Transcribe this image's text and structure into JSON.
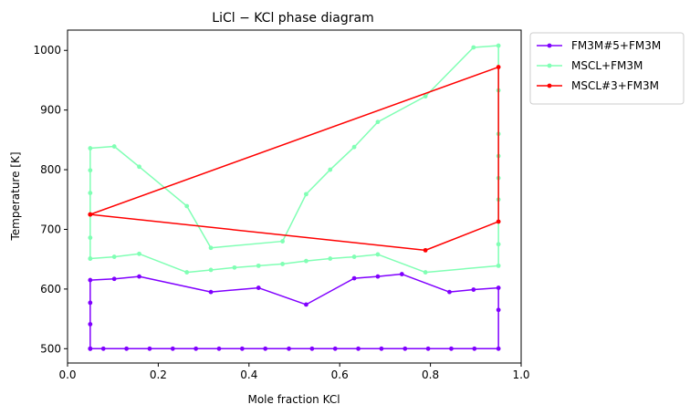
{
  "chart_data": {
    "type": "line",
    "title": "LiCl − KCl phase diagram",
    "xlabel": "Mole fraction KCl",
    "ylabel": "Temperature [K]",
    "xlim": [
      0.0,
      1.0
    ],
    "ylim": [
      476,
      1034
    ],
    "xticks": [
      0.0,
      0.2,
      0.4,
      0.6,
      0.8,
      1.0
    ],
    "xtick_labels": [
      "0.0",
      "0.2",
      "0.4",
      "0.6",
      "0.8",
      "1.0"
    ],
    "yticks": [
      500,
      600,
      700,
      800,
      900,
      1000
    ],
    "ytick_labels": [
      "500",
      "600",
      "700",
      "800",
      "900",
      "1000"
    ],
    "grid": false,
    "legend_position": "outside-top-right",
    "series": [
      {
        "name": "FM3M#5+FM3M",
        "color": "#8000ff",
        "x": [
          0.05,
          0.05,
          0.05,
          0.05,
          0.103,
          0.158,
          0.316,
          0.421,
          0.526,
          0.632,
          0.684,
          0.737,
          0.842,
          0.895,
          0.95,
          0.95,
          0.95,
          0.897,
          0.846,
          0.795,
          0.744,
          0.692,
          0.641,
          0.59,
          0.539,
          0.488,
          0.436,
          0.385,
          0.334,
          0.283,
          0.232,
          0.181,
          0.13,
          0.079,
          0.05,
          0.05
        ],
        "y": [
          500,
          541,
          577,
          615,
          617,
          621,
          595,
          602,
          574,
          618,
          621,
          625,
          595,
          599,
          602,
          565,
          500,
          500,
          500,
          500,
          500,
          500,
          500,
          500,
          500,
          500,
          500,
          500,
          500,
          500,
          500,
          500,
          500,
          500,
          500,
          500
        ]
      },
      {
        "name": "MSCL+FM3M",
        "color": "#80ffb4",
        "x": [
          0.05,
          0.05,
          0.05,
          0.05,
          0.05,
          0.103,
          0.158,
          0.263,
          0.316,
          0.474,
          0.526,
          0.579,
          0.632,
          0.684,
          0.789,
          0.895,
          0.95,
          0.95,
          0.95,
          0.95,
          0.95,
          0.95,
          0.95,
          0.95,
          0.789,
          0.684,
          0.632,
          0.579,
          0.526,
          0.474,
          0.421,
          0.368,
          0.316,
          0.263,
          0.158,
          0.103,
          0.05
        ],
        "y": [
          651,
          686,
          761,
          799,
          836,
          839,
          805,
          739,
          669,
          680,
          759,
          800,
          838,
          880,
          923,
          1005,
          1008,
          933,
          860,
          823,
          786,
          750,
          675,
          639,
          628,
          658,
          654,
          651,
          647,
          642,
          639,
          636,
          632,
          628,
          659,
          654,
          651
        ]
      },
      {
        "name": "MSCL#3+FM3M",
        "color": "#ff0000",
        "x": [
          0.05,
          0.95,
          0.95,
          0.789,
          0.05
        ],
        "y": [
          725,
          972,
          713,
          665,
          725
        ]
      }
    ]
  }
}
